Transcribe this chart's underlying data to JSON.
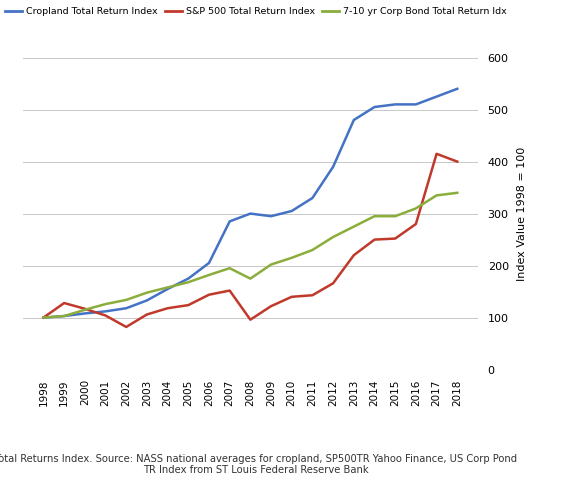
{
  "years": [
    1998,
    1999,
    2000,
    2001,
    2002,
    2003,
    2004,
    2005,
    2006,
    2007,
    2008,
    2009,
    2010,
    2011,
    2012,
    2013,
    2014,
    2015,
    2016,
    2017,
    2018
  ],
  "cropland": [
    100,
    103,
    108,
    112,
    118,
    133,
    155,
    175,
    205,
    285,
    300,
    295,
    305,
    330,
    390,
    480,
    505,
    510,
    510,
    525,
    540
  ],
  "sp500": [
    100,
    128,
    117,
    104,
    82,
    106,
    118,
    124,
    144,
    152,
    96,
    122,
    140,
    143,
    166,
    220,
    250,
    252,
    280,
    415,
    400
  ],
  "corp_bond": [
    100,
    103,
    115,
    126,
    134,
    148,
    158,
    168,
    182,
    195,
    175,
    202,
    215,
    230,
    255,
    275,
    295,
    295,
    310,
    335,
    340
  ],
  "ylabel": "Index Value 1998 = 100",
  "ylim": [
    0,
    600
  ],
  "yticks": [
    0,
    100,
    200,
    300,
    400,
    500,
    600
  ],
  "line_colors": {
    "cropland": "#4472C4",
    "sp500": "#C0392B",
    "corp_bond": "#8AAD3B"
  },
  "legend_labels": [
    "Cropland Total Return Index",
    "S&P 500 Total Return Index",
    "7-10 yr Corp Bond Total Return Idx"
  ],
  "caption": "Total Returns Index. Source: NASS national averages for cropland, SP500TR Yahoo Finance, US Corp Pond\nTR Index from ST Louis Federal Reserve Bank",
  "grid_color": "#c8c8c8"
}
